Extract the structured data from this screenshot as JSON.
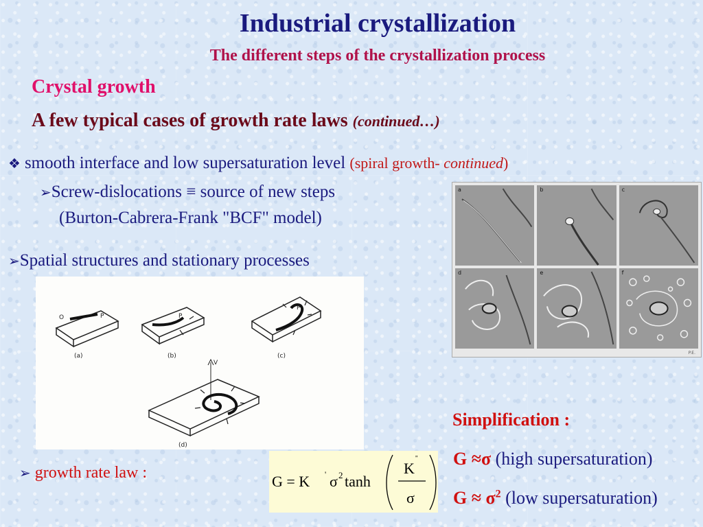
{
  "slide": {
    "title": "Industrial crystallization",
    "subtitle": "The different steps of the crystallization process",
    "section": "Crystal growth",
    "heading": "A few typical cases of growth rate laws ",
    "heading_continued": "(continued…)",
    "bullet1": {
      "marker": "❖",
      "text": "smooth interface and low supersaturation level ",
      "paren_open": "(spiral growth- ",
      "paren_italic": "continued",
      "paren_close": ")"
    },
    "sub1": {
      "marker": "➢",
      "text": "Screw-dislocations ≡ source of new steps"
    },
    "sub2": "(Burton-Cabrera-Frank \"BCF\" model)",
    "sub3": {
      "marker": "➢",
      "text": "Spatial structures and stationary processes"
    },
    "afm_panels": [
      "a",
      "b",
      "c",
      "d",
      "e",
      "f"
    ],
    "afm_credit": "P.E.",
    "sketch_labels": {
      "a": "(a)",
      "b": "(b)",
      "c": "(c)",
      "d": "(d)",
      "o": "O",
      "p": "P",
      "v": "V"
    },
    "rate_law": {
      "marker": "➢",
      "text": "growth rate law :"
    },
    "formula": {
      "lhs": "G = K",
      "prime": "'",
      "sigma": "σ",
      "sq": "2",
      "tanh": "tanh",
      "num": "K",
      "num_prime": "''",
      "den": "σ"
    },
    "simplification": {
      "title": "Simplification :",
      "line1_bold": "G ≈σ",
      "line1_rest": " (high supersaturation)",
      "line2_bold": "G ≈ σ",
      "line2_sup": "2",
      "line2_rest": " (low supersaturation)"
    }
  }
}
